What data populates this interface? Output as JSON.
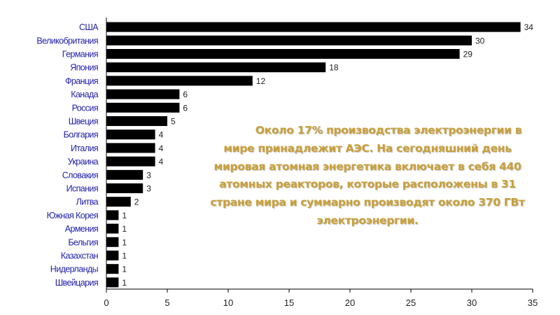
{
  "chart_data": {
    "type": "bar",
    "orientation": "horizontal",
    "categories": [
      "США",
      "Великобритания",
      "Германия",
      "Япония",
      "Франция",
      "Канада",
      "Россия",
      "Швеция",
      "Болгария",
      "Италия",
      "Украина",
      "Словакия",
      "Испания",
      "Литва",
      "Южная Корея",
      "Армения",
      "Бельгия",
      "Казахстан",
      "Нидерланды",
      "Швейцария"
    ],
    "values": [
      34,
      30,
      29,
      18,
      12,
      6,
      6,
      5,
      4,
      4,
      4,
      3,
      3,
      2,
      1,
      1,
      1,
      1,
      1,
      1
    ],
    "xlim": [
      0,
      35
    ],
    "xticks": [
      0,
      5,
      10,
      15,
      20,
      25,
      30,
      35
    ],
    "grid": false,
    "bar_color": "#000000",
    "category_label_color": "#1f1fa8"
  },
  "annotation": {
    "lines": [
      "Около 17% производства электроэнергии в",
      "мире принадлежит АЭС. На сегодняшний день",
      "мировая атомная энергетика включает в себя 440",
      "атомных реакторов, которые расположены в 31",
      "стране мира и суммарно производят около 370 ГВт",
      "электроэнергии."
    ],
    "color": "#c9a03a"
  }
}
